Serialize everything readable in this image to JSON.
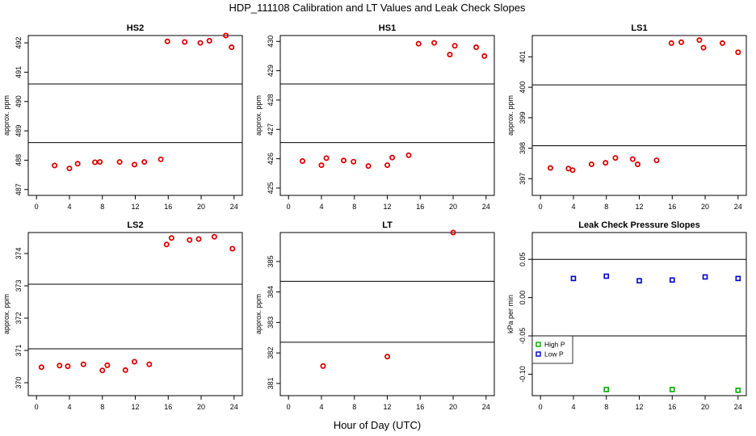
{
  "title": "HDP_111108  Calibration and LT Values and Leak Check Slopes",
  "xlabel": "Hour of Day (UTC)",
  "colors": {
    "point": "#dd0000",
    "high_p": "#00aa00",
    "low_p": "#0000cc",
    "axis": "#000000"
  },
  "chart_data": [
    {
      "type": "scatter",
      "title": "HS2",
      "ylabel": "approx. ppm",
      "xlim": [
        -1,
        25
      ],
      "ylim": [
        486.8,
        492.25
      ],
      "xticks": [
        0,
        4,
        8,
        12,
        16,
        20,
        24
      ],
      "yticks": [
        487,
        488,
        489,
        490,
        491,
        492
      ],
      "hlines": [
        490.6,
        488.6
      ],
      "series": [
        {
          "name": "values",
          "x": [
            2.2,
            4,
            5,
            7.1,
            7.7,
            10.1,
            11.9,
            13.1,
            15.1,
            15.9,
            18,
            19.9,
            21,
            23,
            23.7
          ],
          "y": [
            487.82,
            487.72,
            487.88,
            487.93,
            487.94,
            487.94,
            487.85,
            487.94,
            488.03,
            492.05,
            492.03,
            492.0,
            492.07,
            492.25,
            491.85
          ]
        }
      ]
    },
    {
      "type": "scatter",
      "title": "HS1",
      "ylabel": "approx. ppm",
      "xlim": [
        -1,
        25
      ],
      "ylim": [
        424.75,
        430.2
      ],
      "xticks": [
        0,
        4,
        8,
        12,
        16,
        20,
        24
      ],
      "yticks": [
        425,
        426,
        427,
        428,
        429,
        430
      ],
      "hlines": [
        428.55,
        426.55
      ],
      "series": [
        {
          "name": "values",
          "x": [
            1.7,
            4,
            4.6,
            6.7,
            7.9,
            9.7,
            12,
            12.6,
            14.6,
            15.8,
            17.7,
            19.6,
            20.2,
            22.8,
            23.8
          ],
          "y": [
            425.92,
            425.78,
            426.02,
            425.94,
            425.9,
            425.75,
            425.78,
            426.04,
            426.12,
            429.92,
            429.95,
            429.55,
            429.85,
            429.8,
            429.5
          ]
        }
      ]
    },
    {
      "type": "scatter",
      "title": "LS1",
      "ylabel": "approx. ppm",
      "xlim": [
        -1,
        25
      ],
      "ylim": [
        396.45,
        401.7
      ],
      "xticks": [
        0,
        4,
        8,
        12,
        16,
        20,
        24
      ],
      "yticks": [
        397,
        398,
        399,
        400,
        401
      ],
      "hlines": [
        400.08,
        398.08
      ],
      "series": [
        {
          "name": "values",
          "x": [
            1.2,
            3.4,
            3.9,
            6.2,
            7.9,
            9.1,
            11.2,
            11.8,
            14.1,
            15.9,
            17.1,
            19.3,
            19.8,
            22.1,
            24.0
          ],
          "y": [
            397.35,
            397.33,
            397.28,
            397.47,
            397.52,
            397.68,
            397.64,
            397.47,
            397.6,
            401.45,
            401.48,
            401.55,
            401.3,
            401.45,
            401.15
          ]
        }
      ]
    },
    {
      "type": "scatter",
      "title": "LS2",
      "ylabel": "approx. ppm",
      "xlim": [
        -1,
        25
      ],
      "ylim": [
        369.6,
        374.65
      ],
      "xticks": [
        0,
        4,
        8,
        12,
        16,
        20,
        24
      ],
      "yticks": [
        370,
        371,
        372,
        373,
        374
      ],
      "hlines": [
        373.05,
        371.05
      ],
      "series": [
        {
          "name": "values",
          "x": [
            0.6,
            2.8,
            3.8,
            5.7,
            8.0,
            8.6,
            10.8,
            11.9,
            13.7,
            15.8,
            16.4,
            18.6,
            19.7,
            21.6,
            23.8
          ],
          "y": [
            370.48,
            370.53,
            370.51,
            370.57,
            370.38,
            370.54,
            370.39,
            370.65,
            370.57,
            374.28,
            374.48,
            374.42,
            374.45,
            374.52,
            374.15
          ]
        }
      ]
    },
    {
      "type": "scatter",
      "title": "LT",
      "ylabel": "approx. ppm",
      "xlim": [
        -1,
        25
      ],
      "ylim": [
        380.6,
        385.95
      ],
      "xticks": [
        0,
        4,
        8,
        12,
        16,
        20,
        24
      ],
      "yticks": [
        381,
        382,
        383,
        384,
        385
      ],
      "hlines": [
        384.35,
        382.35
      ],
      "series": [
        {
          "name": "values",
          "x": [
            4.2,
            12.0,
            20.0
          ],
          "y": [
            381.57,
            381.88,
            385.95
          ]
        }
      ]
    },
    {
      "type": "scatter",
      "title": "Leak Check Pressure Slopes",
      "ylabel": "kPa per min",
      "xlim": [
        -1,
        25
      ],
      "ylim": [
        -0.128,
        0.085
      ],
      "xticks": [
        0,
        4,
        8,
        12,
        16,
        20,
        24
      ],
      "yticks": [
        -0.1,
        -0.05,
        0.0,
        0.05
      ],
      "ytick_labels": [
        "-0.10",
        "-0.05",
        "0.00",
        "0.05"
      ],
      "hlines": [
        0.05,
        -0.05
      ],
      "legend": {
        "position": "lower-left",
        "entries": [
          "High P",
          "Low P"
        ]
      },
      "series": [
        {
          "name": "High P",
          "marker": "square",
          "x": [
            8,
            16,
            24
          ],
          "y": [
            -0.12,
            -0.12,
            -0.121
          ]
        },
        {
          "name": "Low P",
          "marker": "square",
          "x": [
            4,
            8,
            12,
            16,
            20,
            24
          ],
          "y": [
            0.025,
            0.028,
            0.022,
            0.023,
            0.027,
            0.025
          ]
        }
      ]
    }
  ]
}
